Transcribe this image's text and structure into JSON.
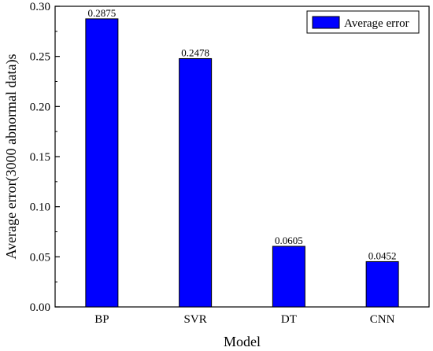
{
  "chart_data": {
    "type": "bar",
    "categories": [
      "BP",
      "SVR",
      "DT",
      "CNN"
    ],
    "series": [
      {
        "name": "Average error",
        "values": [
          0.2875,
          0.2478,
          0.0605,
          0.0452
        ],
        "color": "#0000ff"
      }
    ],
    "data_labels": [
      "0.2875",
      "0.2478",
      "0.0605",
      "0.0452"
    ],
    "xlabel": "Model",
    "ylabel": "Average error(3000 abnormal data)s",
    "ylim": [
      0,
      0.3
    ],
    "yticks": [
      0.0,
      0.05,
      0.1,
      0.15,
      0.2,
      0.25,
      0.3
    ],
    "ytick_labels": [
      "0.00",
      "0.05",
      "0.10",
      "0.15",
      "0.20",
      "0.25",
      "0.30"
    ],
    "grid": false,
    "legend_position": "top-right"
  }
}
